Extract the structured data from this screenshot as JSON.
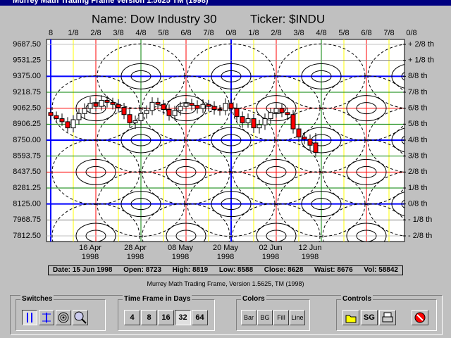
{
  "window": {
    "title": "Murrey Math Trading Frame Version 1.5625  TM (1998)"
  },
  "chart_data": {
    "type": "candlestick",
    "title": "Name: Dow Industry 30",
    "ticker": "Ticker: $INDU",
    "categories": [
      null,
      null,
      null,
      null,
      null,
      null,
      null,
      "16 Apr\n1998",
      null,
      null,
      null,
      null,
      null,
      null,
      null,
      "28 Apr\n1998",
      null,
      null,
      null,
      null,
      null,
      null,
      null,
      "08 May\n1998",
      null,
      null,
      null,
      null,
      null,
      null,
      null,
      "20 May\n1998",
      null,
      null,
      null,
      null,
      null,
      null,
      null,
      "02 Jun\n1998",
      null,
      null,
      null,
      null,
      null,
      null,
      "12 Jun\n1998",
      null
    ],
    "open": [
      9020,
      8990,
      8960,
      8930,
      8870,
      8950,
      9010,
      9060,
      9110,
      9080,
      9140,
      9120,
      9100,
      9070,
      9000,
      8920,
      8940,
      9010,
      9040,
      9120,
      9100,
      9050,
      8990,
      9040,
      9080,
      9110,
      9090,
      9060,
      9100,
      9080,
      9050,
      9040,
      9110,
      9060,
      8980,
      8920,
      8960,
      8870,
      8900,
      8960,
      9020,
      9060,
      9020,
      9000,
      8860,
      8780,
      8760,
      8723
    ],
    "high": [
      9065,
      9030,
      9010,
      8975,
      8995,
      9060,
      9110,
      9170,
      9160,
      9190,
      9185,
      9165,
      9150,
      9115,
      9050,
      8990,
      9060,
      9090,
      9170,
      9165,
      9145,
      9100,
      9085,
      9125,
      9160,
      9155,
      9140,
      9150,
      9145,
      9130,
      9095,
      9160,
      9155,
      9110,
      9030,
      9010,
      9005,
      8950,
      9010,
      9065,
      9110,
      9105,
      9070,
      9045,
      8910,
      8830,
      8805,
      8819
    ],
    "low": [
      8945,
      8920,
      8890,
      8830,
      8825,
      8900,
      8960,
      9010,
      9030,
      9040,
      9070,
      9050,
      9020,
      8955,
      8870,
      8860,
      8890,
      8960,
      8995,
      9050,
      9000,
      8940,
      8945,
      8990,
      9030,
      9040,
      9010,
      9015,
      9030,
      9000,
      8990,
      8995,
      9010,
      8930,
      8870,
      8870,
      8820,
      8815,
      8850,
      8910,
      8970,
      8975,
      8950,
      8815,
      8730,
      8710,
      8650,
      8588
    ],
    "close": [
      8990,
      8960,
      8930,
      8870,
      8950,
      9010,
      9060,
      9110,
      9080,
      9140,
      9120,
      9100,
      9070,
      9000,
      8920,
      8940,
      9010,
      9040,
      9120,
      9100,
      9050,
      8990,
      9040,
      9080,
      9110,
      9090,
      9060,
      9100,
      9080,
      9050,
      9040,
      9110,
      9060,
      8980,
      8920,
      8960,
      8870,
      8900,
      8960,
      9020,
      9060,
      9020,
      9000,
      8860,
      8780,
      8760,
      8700,
      8628
    ],
    "up_color": "#ffffff",
    "down_color": "#ff0000",
    "ylim": [
      7812.5,
      9687.5
    ],
    "yticks": [
      {
        "value": 9687.5,
        "label": "9687.50"
      },
      9531.25,
      {
        "value": 9375,
        "label": "9375.00"
      },
      9218.75,
      {
        "value": 9062.5,
        "label": "9062.50"
      },
      8906.25,
      {
        "value": 8750,
        "label": "8750.00"
      },
      8593.75,
      {
        "value": 8437.5,
        "label": "8437.50"
      },
      8281.25,
      {
        "value": 8125,
        "label": "8125.00"
      },
      7968.75,
      {
        "value": 7812.5,
        "label": "7812.50"
      }
    ],
    "grid_colors": [
      "#c0c0c0",
      "#808080",
      "#0000ff",
      "#008000",
      "#ff0000",
      "#008000",
      "#0000ff",
      "#008000",
      "#ff0000",
      "#008000",
      "#0000ff",
      "#808080",
      "#c0c0c0"
    ],
    "y2lim": [
      7812.5,
      9687.5
    ],
    "y2ticks": [
      {
        "value": 9687.5,
        "label": "+ 2/8 th"
      },
      {
        "value": 9531.25,
        "label": "+ 1/8 th"
      },
      {
        "value": 9375,
        "label": "8/8 th"
      },
      {
        "value": 9218.75,
        "label": "7/8 th"
      },
      {
        "value": 9062.5,
        "label": "6/8 th"
      },
      {
        "value": 8906.25,
        "label": "5/8 th"
      },
      {
        "value": 8750,
        "label": "4/8 th"
      },
      {
        "value": 8593.75,
        "label": "3/8 th"
      },
      {
        "value": 8437.5,
        "label": "2/8 th"
      },
      {
        "value": 8281.25,
        "label": "1/8 th"
      },
      {
        "value": 8125,
        "label": "0/8 th"
      },
      {
        "value": 7968.75,
        "label": "- 1/8 th"
      },
      {
        "value": 7812.5,
        "label": "- 2/8 th"
      }
    ],
    "top_labels": [
      "8",
      "1/8",
      "2/8",
      "3/8",
      "4/8",
      "5/8",
      "6/8",
      "7/8",
      "0/8",
      "1/8",
      "2/8",
      "3/8",
      "4/8",
      "5/8",
      "6/8",
      "7/8",
      "0/8"
    ],
    "top_colors": [
      "#0000ff",
      "#ffff00",
      "#ff0000",
      "#ffff00",
      "#008000",
      "#ffff00",
      "#ff0000",
      "#ffff00",
      "#0000ff",
      "#ffff00",
      "#ff0000",
      "#ffff00",
      "#008000",
      "#ffff00",
      "#ff0000",
      "#ffff00",
      "#0000ff"
    ]
  },
  "status": [
    "Date: 15 Jun 1998",
    "Open: 8723",
    "High: 8819",
    "Low: 8588",
    "Close: 8628",
    "Waist: 8676",
    "Vol: 58842"
  ],
  "footer": "Murrey Math Trading Frame, Version 1.5625, TM (1998)",
  "panels": {
    "switches": {
      "title": "Switches"
    },
    "timeframe": {
      "title": "Time Frame in Days",
      "buttons": [
        "4",
        "8",
        "16",
        "32",
        "64"
      ]
    },
    "colors": {
      "title": "Colors",
      "buttons": [
        "Bar",
        "BG",
        "Fill",
        "Line"
      ]
    },
    "controls": {
      "title": "Controls",
      "buttons": [
        "SG"
      ]
    }
  }
}
